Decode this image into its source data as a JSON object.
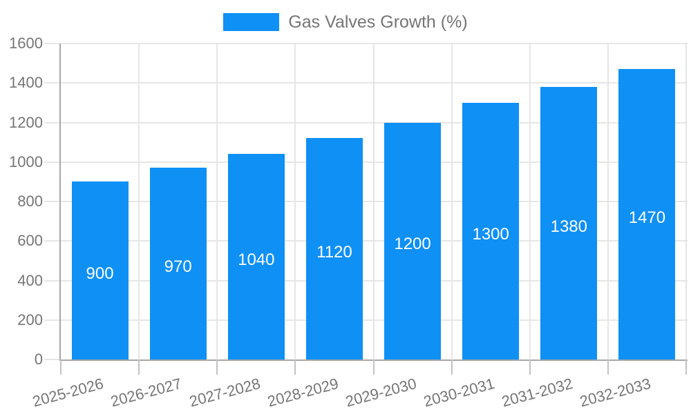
{
  "legend": {
    "label": "Gas Valves Growth (%)",
    "swatch_color": "#0e90f5"
  },
  "chart_data": {
    "type": "bar",
    "title": "Gas Valves Growth (%)",
    "categories": [
      "2025-2026",
      "2026-2027",
      "2027-2028",
      "2028-2029",
      "2029-2030",
      "2030-2031",
      "2031-2032",
      "2032-2033"
    ],
    "values": [
      900,
      970,
      1040,
      1120,
      1200,
      1300,
      1380,
      1470
    ],
    "value_labels": [
      "900",
      "970",
      "1040",
      "1120",
      "1200",
      "1300",
      "1380",
      "1470"
    ],
    "xlabel": "",
    "ylabel": "",
    "ylim": [
      0,
      1600
    ],
    "ytick_step": 200,
    "ytick_labels": [
      "0",
      "200",
      "400",
      "600",
      "800",
      "1000",
      "1200",
      "1400",
      "1600"
    ],
    "x_label_rotation": -15,
    "grid": true,
    "legend_position": "top",
    "bar_color": "#0e90f5",
    "value_label_color": "#ffffff",
    "axis_label_color": "#757575",
    "grid_color": "#e6e6e6",
    "axis_line_color": "#a6a6a6"
  }
}
